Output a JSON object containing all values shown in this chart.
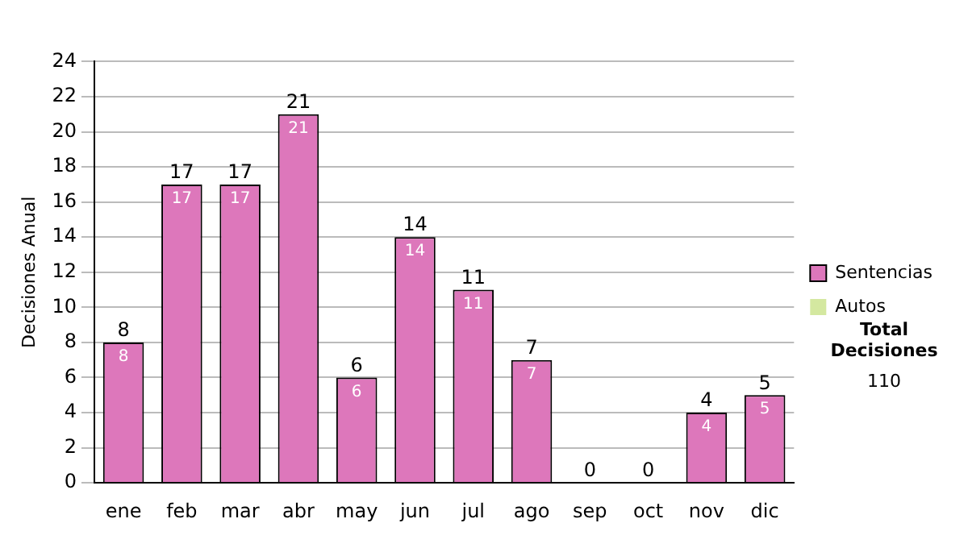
{
  "chart_data": {
    "type": "bar",
    "stacked": true,
    "ylabel": "Decisiones Anual",
    "categories": [
      "ene",
      "feb",
      "mar",
      "abr",
      "may",
      "jun",
      "jul",
      "ago",
      "sep",
      "oct",
      "nov",
      "dic"
    ],
    "series": [
      {
        "name": "Sentencias",
        "color": "#dd77bb",
        "values": [
          8,
          17,
          17,
          21,
          6,
          14,
          11,
          7,
          0,
          0,
          4,
          5
        ],
        "value_labels": [
          "8",
          "17",
          "17",
          "21",
          "6",
          "14",
          "11",
          "7",
          null,
          null,
          "4",
          "5"
        ]
      },
      {
        "name": "Autos",
        "color": "#d4e8a0",
        "values": [
          0,
          0,
          0,
          0,
          0,
          0,
          0,
          0,
          0,
          0,
          0,
          0
        ]
      }
    ],
    "totals": [
      "8",
      "17",
      "17",
      "21",
      "6",
      "14",
      "11",
      "7",
      "0",
      "0",
      "4",
      "5"
    ],
    "ylim": [
      0,
      24
    ],
    "yticks": [
      0,
      2,
      4,
      6,
      8,
      10,
      12,
      14,
      16,
      18,
      20,
      22,
      24
    ],
    "grid": "y",
    "legend": "right",
    "annotations": [
      "Total Decisiones",
      "110"
    ]
  }
}
